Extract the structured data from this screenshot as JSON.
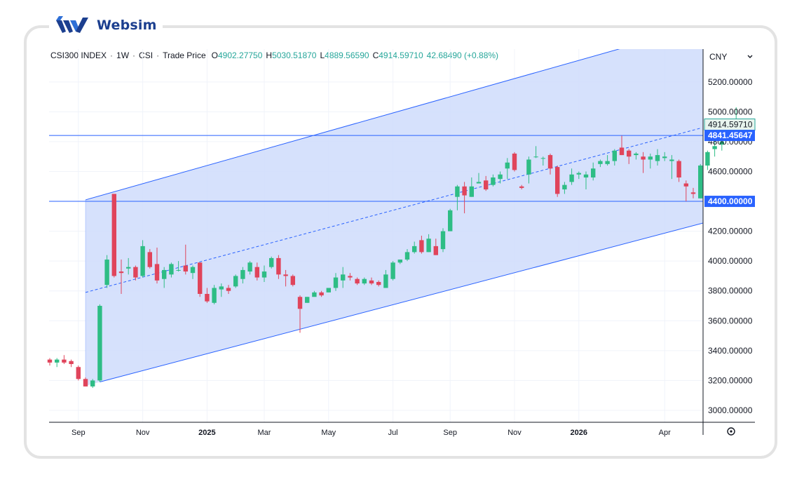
{
  "brand": {
    "name": "Websim"
  },
  "header": {
    "symbol": "CSI300 INDEX",
    "interval": "1W",
    "exchange": "CSI",
    "price_type": "Trade Price",
    "o_label": "O",
    "o_value": "4902.27750",
    "h_label": "H",
    "h_value": "5030.51870",
    "l_label": "L",
    "l_value": "4889.56590",
    "c_label": "C",
    "c_value": "4914.59710",
    "change": "42.68490 (+0.88%)"
  },
  "currency": {
    "label": "CNY",
    "dropdown_icon": "chevron-down-icon"
  },
  "colors": {
    "up": "#26a69a",
    "up_body": "#2ebd85",
    "down": "#e0445b",
    "channel_line": "#2962ff",
    "channel_fill": "#cfdcfb",
    "label_bg": "#2962ff",
    "last_price_bg": "#26a69a"
  },
  "chart_data": {
    "type": "candlestick",
    "y_axis": {
      "range": [
        2920,
        5420
      ],
      "ticks": [
        "3000.00000",
        "3200.00000",
        "3400.00000",
        "3600.00000",
        "3800.00000",
        "4000.00000",
        "4200.00000",
        "4400.00000",
        "4600.00000",
        "4800.00000",
        "5000.00000",
        "5200.00000"
      ]
    },
    "x_axis": {
      "labels": [
        {
          "text": "Sep",
          "index": 4,
          "bold": false
        },
        {
          "text": "Nov",
          "index": 13,
          "bold": false
        },
        {
          "text": "2025",
          "index": 22,
          "bold": true
        },
        {
          "text": "Mar",
          "index": 30,
          "bold": false
        },
        {
          "text": "May",
          "index": 39,
          "bold": false
        },
        {
          "text": "Jul",
          "index": 48,
          "bold": false
        },
        {
          "text": "Sep",
          "index": 56,
          "bold": false
        },
        {
          "text": "Nov",
          "index": 65,
          "bold": false
        },
        {
          "text": "2026",
          "index": 74,
          "bold": true
        },
        {
          "text": "Apr",
          "index": 86,
          "bold": false
        }
      ]
    },
    "price_labels": [
      {
        "text": "4914.59710",
        "value": 4914.5971,
        "kind": "last"
      },
      {
        "text": "4841.45647",
        "value": 4841.45647,
        "kind": "line"
      },
      {
        "text": "4400.00000",
        "value": 4400,
        "kind": "line"
      }
    ],
    "horizontal_lines": [
      4841.45647,
      4400
    ],
    "channel": {
      "upper": {
        "x": [
          5,
          84
        ],
        "y": [
          4410,
          5480
        ]
      },
      "mid": {
        "x": [
          5,
          91
        ],
        "y": [
          3790,
          4890
        ]
      },
      "lower": {
        "x": [
          7,
          91
        ],
        "y": [
          3190,
          4250
        ]
      }
    },
    "candles": [
      [
        3340,
        3350,
        3300,
        3320
      ],
      [
        3320,
        3350,
        3290,
        3340
      ],
      [
        3340,
        3370,
        3310,
        3320
      ],
      [
        3330,
        3340,
        3290,
        3310
      ],
      [
        3290,
        3300,
        3200,
        3210
      ],
      [
        3210,
        3220,
        3160,
        3160
      ],
      [
        3160,
        3210,
        3150,
        3200
      ],
      [
        3200,
        3710,
        3190,
        3700
      ],
      [
        3840,
        4040,
        3820,
        4010
      ],
      [
        4450,
        4450,
        3890,
        3900
      ],
      [
        3930,
        4010,
        3780,
        3920
      ],
      [
        3950,
        4020,
        3910,
        3960
      ],
      [
        3960,
        3970,
        3870,
        3890
      ],
      [
        3900,
        4140,
        3890,
        4100
      ],
      [
        4060,
        4080,
        3950,
        3960
      ],
      [
        3980,
        4090,
        3850,
        3870
      ],
      [
        3880,
        3960,
        3820,
        3940
      ],
      [
        3910,
        3990,
        3890,
        3980
      ],
      [
        3940,
        4000,
        3930,
        3940
      ],
      [
        3970,
        4110,
        3910,
        3930
      ],
      [
        3920,
        3970,
        3880,
        3960
      ],
      [
        3990,
        3990,
        3760,
        3780
      ],
      [
        3780,
        3820,
        3720,
        3730
      ],
      [
        3720,
        3840,
        3710,
        3820
      ],
      [
        3810,
        3850,
        3760,
        3830
      ],
      [
        3820,
        3840,
        3780,
        3800
      ],
      [
        3830,
        3910,
        3820,
        3900
      ],
      [
        3880,
        3960,
        3850,
        3940
      ],
      [
        3930,
        4000,
        3910,
        3990
      ],
      [
        3960,
        3990,
        3870,
        3890
      ],
      [
        3890,
        3970,
        3860,
        3930
      ],
      [
        3960,
        4030,
        3950,
        4020
      ],
      [
        4020,
        4040,
        3880,
        3910
      ],
      [
        3910,
        3940,
        3830,
        3900
      ],
      [
        3900,
        3910,
        3830,
        3840
      ],
      [
        3760,
        3770,
        3520,
        3680
      ],
      [
        3720,
        3760,
        3720,
        3760
      ],
      [
        3760,
        3800,
        3770,
        3790
      ],
      [
        3790,
        3800,
        3760,
        3770
      ],
      [
        3790,
        3820,
        3790,
        3820
      ],
      [
        3820,
        3920,
        3800,
        3890
      ],
      [
        3870,
        3960,
        3820,
        3910
      ],
      [
        3900,
        3920,
        3870,
        3890
      ],
      [
        3880,
        3890,
        3840,
        3850
      ],
      [
        3850,
        3890,
        3840,
        3880
      ],
      [
        3870,
        3890,
        3840,
        3850
      ],
      [
        3860,
        3870,
        3830,
        3840
      ],
      [
        3820,
        3940,
        3820,
        3910
      ],
      [
        3880,
        4000,
        3870,
        3990
      ],
      [
        3990,
        4010,
        3980,
        4010
      ],
      [
        4010,
        4080,
        4000,
        4060
      ],
      [
        4060,
        4130,
        4050,
        4100
      ],
      [
        4140,
        4170,
        4050,
        4060
      ],
      [
        4060,
        4180,
        4060,
        4150
      ],
      [
        4100,
        4150,
        4040,
        4040
      ],
      [
        4080,
        4220,
        4060,
        4200
      ],
      [
        4200,
        4350,
        4200,
        4340
      ],
      [
        4430,
        4510,
        4340,
        4500
      ],
      [
        4500,
        4530,
        4320,
        4440
      ],
      [
        4430,
        4560,
        4430,
        4500
      ],
      [
        4520,
        4590,
        4520,
        4530
      ],
      [
        4540,
        4570,
        4470,
        4480
      ],
      [
        4510,
        4580,
        4500,
        4560
      ],
      [
        4550,
        4600,
        4520,
        4580
      ],
      [
        4620,
        4690,
        4550,
        4660
      ],
      [
        4720,
        4730,
        4600,
        4610
      ],
      [
        4500,
        4510,
        4480,
        4490
      ],
      [
        4580,
        4700,
        4520,
        4680
      ],
      [
        4700,
        4770,
        4690,
        4700
      ],
      [
        4690,
        4700,
        4640,
        4690
      ],
      [
        4710,
        4720,
        4580,
        4620
      ],
      [
        4630,
        4640,
        4430,
        4450
      ],
      [
        4480,
        4530,
        4450,
        4510
      ],
      [
        4530,
        4620,
        4510,
        4580
      ],
      [
        4580,
        4600,
        4550,
        4590
      ],
      [
        4560,
        4600,
        4480,
        4580
      ],
      [
        4560,
        4660,
        4540,
        4620
      ],
      [
        4650,
        4680,
        4630,
        4670
      ],
      [
        4650,
        4710,
        4640,
        4670
      ],
      [
        4670,
        4750,
        4640,
        4740
      ],
      [
        4760,
        4840,
        4710,
        4710
      ],
      [
        4740,
        4750,
        4650,
        4700
      ],
      [
        4710,
        4730,
        4680,
        4720
      ],
      [
        4700,
        4730,
        4590,
        4680
      ],
      [
        4680,
        4720,
        4620,
        4700
      ],
      [
        4670,
        4750,
        4640,
        4710
      ],
      [
        4690,
        4730,
        4670,
        4700
      ],
      [
        4670,
        4710,
        4550,
        4680
      ],
      [
        4670,
        4680,
        4530,
        4560
      ],
      [
        4520,
        4540,
        4400,
        4500
      ],
      [
        4460,
        4490,
        4420,
        4450
      ],
      [
        4420,
        4650,
        4420,
        4640
      ],
      [
        4640,
        4740,
        4610,
        4730
      ],
      [
        4750,
        4800,
        4700,
        4770
      ],
      [
        4780,
        4830,
        4740,
        4800
      ],
      [
        4880,
        4910,
        4830,
        4900
      ],
      [
        4902.2775,
        5030.5187,
        4889.5659,
        4914.5971
      ]
    ]
  }
}
